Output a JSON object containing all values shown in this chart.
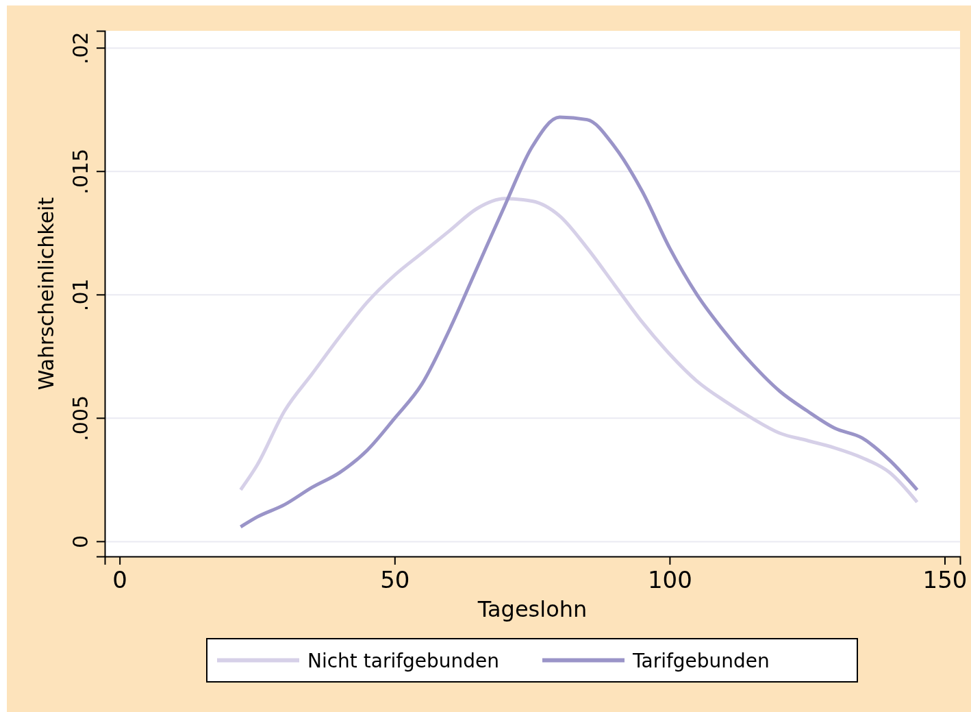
{
  "chart_data": {
    "type": "line",
    "xlabel": "Tageslohn",
    "ylabel": "Wahrscheinlichkeit",
    "xlim": [
      -2.7,
      152.8
    ],
    "xticks": [
      0,
      50,
      100,
      150
    ],
    "ylim": [
      -0.0006,
      0.0207
    ],
    "yticks": [
      {
        "value": 0,
        "label": "0"
      },
      {
        "value": 0.005,
        "label": ".005"
      },
      {
        "value": 0.01,
        "label": ".01"
      },
      {
        "value": 0.015,
        "label": ".015"
      },
      {
        "value": 0.02,
        "label": ".02"
      }
    ],
    "grid": "y",
    "legend": "bottom",
    "line_style": "solid",
    "marker": "none",
    "series": [
      {
        "name": "Nicht tarifgebunden",
        "color": "#d6d0e8",
        "x": [
          22,
          25,
          30,
          35,
          40,
          45,
          50,
          55,
          60,
          65,
          70,
          75,
          80,
          85,
          90,
          95,
          100,
          105,
          110,
          115,
          120,
          125,
          130,
          135,
          140,
          145
        ],
        "values": [
          0.0021,
          0.0031,
          0.0053,
          0.0068,
          0.0083,
          0.0097,
          0.0108,
          0.0117,
          0.0126,
          0.0135,
          0.0139,
          0.0138,
          0.0132,
          0.0119,
          0.0104,
          0.0089,
          0.0076,
          0.0065,
          0.0057,
          0.005,
          0.0044,
          0.0041,
          0.0038,
          0.0034,
          0.0028,
          0.0016
        ]
      },
      {
        "name": "Tarifgebunden",
        "color": "#9a94c8",
        "x": [
          22,
          25,
          30,
          35,
          40,
          45,
          50,
          55,
          60,
          65,
          70,
          75,
          80,
          85,
          90,
          95,
          100,
          105,
          110,
          115,
          120,
          125,
          130,
          135,
          140,
          145
        ],
        "values": [
          0.0006,
          0.001,
          0.0015,
          0.0022,
          0.0028,
          0.0037,
          0.005,
          0.0064,
          0.0086,
          0.0111,
          0.0136,
          0.016,
          0.0172,
          0.0171,
          0.016,
          0.0142,
          0.0119,
          0.01,
          0.0085,
          0.0072,
          0.0061,
          0.0053,
          0.0046,
          0.0042,
          0.0033,
          0.0021
        ]
      }
    ]
  }
}
